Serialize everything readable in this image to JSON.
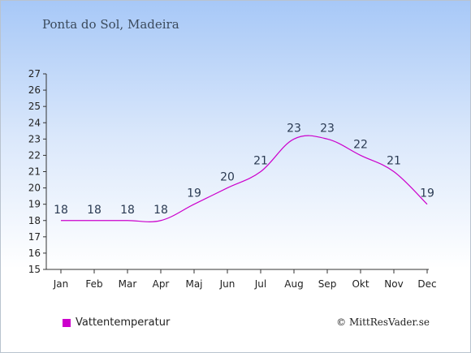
{
  "title": "Ponta do Sol, Madeira",
  "legend": {
    "label": "Vattentemperatur",
    "color": "#cc00cc"
  },
  "credit": "© MittResVader.se",
  "chart_data": {
    "type": "line",
    "categories": [
      "Jan",
      "Feb",
      "Mar",
      "Apr",
      "Maj",
      "Jun",
      "Jul",
      "Aug",
      "Sep",
      "Okt",
      "Nov",
      "Dec"
    ],
    "series": [
      {
        "name": "Vattentemperatur",
        "values": [
          18,
          18,
          18,
          18,
          19,
          20,
          21,
          23,
          23,
          22,
          21,
          19
        ],
        "color": "#cc00cc"
      }
    ],
    "ylim": [
      15,
      27
    ],
    "yticks": [
      15,
      16,
      17,
      18,
      19,
      20,
      21,
      22,
      23,
      24,
      25,
      26,
      27
    ],
    "grid": false,
    "legend_position": "bottom-left"
  }
}
